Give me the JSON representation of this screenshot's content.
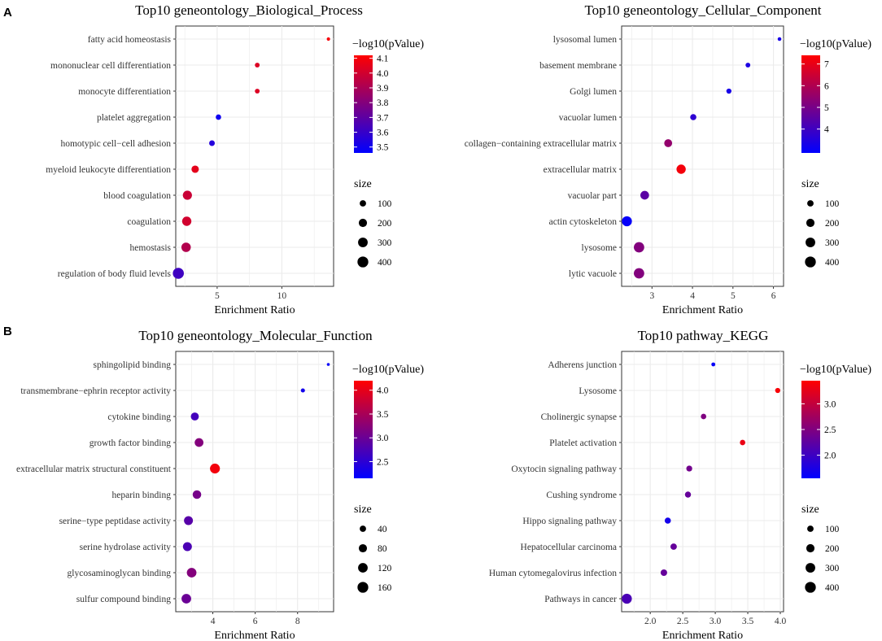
{
  "panel_labels": [
    "A",
    "B"
  ],
  "chart_data": [
    {
      "type": "scatter",
      "title": "Top10 geneontology_Biological_Process",
      "xlabel": "Enrichment Ratio",
      "ylabel": "",
      "xlim": [
        1.8,
        14.0
      ],
      "x_ticks": [
        5,
        10
      ],
      "grid": true,
      "categories": [
        "fatty acid homeostasis",
        "mononuclear cell differentiation",
        "monocyte differentiation",
        "platelet aggregation",
        "homotypic cell−cell adhesion",
        "myeloid leukocyte differentiation",
        "blood coagulation",
        "coagulation",
        "hemostasis",
        "regulation of body fluid levels"
      ],
      "x": [
        13.6,
        8.1,
        8.1,
        5.1,
        4.6,
        3.3,
        2.7,
        2.65,
        2.6,
        2.0
      ],
      "neglog10p": [
        4.1,
        4.03,
        4.03,
        3.5,
        3.55,
        4.05,
        3.98,
        4.0,
        3.92,
        3.62
      ],
      "size": [
        10,
        40,
        40,
        60,
        70,
        150,
        260,
        270,
        280,
        420
      ],
      "color_legend": {
        "title": "−log10(pValue)",
        "range": [
          3.46,
          4.12
        ],
        "ticks": [
          "3.5",
          "3.6",
          "3.7",
          "3.8",
          "3.9",
          "4.0",
          "4.1"
        ],
        "low_color": "#0000ff",
        "high_color": "#ff0000"
      },
      "size_legend": {
        "title": "size",
        "values": [
          100,
          200,
          300,
          400
        ],
        "labels": [
          "100",
          "200",
          "300",
          "400"
        ],
        "max": 420
      }
    },
    {
      "type": "scatter",
      "title": "Top10 geneontology_Cellular_Component",
      "xlabel": "Enrichment Ratio",
      "ylabel": "",
      "xlim": [
        2.25,
        6.25
      ],
      "x_ticks": [
        3,
        4,
        5,
        6
      ],
      "grid": true,
      "categories": [
        "lysosomal lumen",
        "basement membrane",
        "Golgi lumen",
        "vacuolar lumen",
        "collagen−containing extracellular matrix",
        "extracellular matrix",
        "vacuolar part",
        "actin cytoskeleton",
        "lysosome",
        "lytic vacuole"
      ],
      "x": [
        6.15,
        5.37,
        4.9,
        4.02,
        3.4,
        3.72,
        2.82,
        2.38,
        2.68,
        2.68
      ],
      "neglog10p": [
        3.3,
        3.4,
        3.3,
        3.7,
        5.5,
        7.2,
        4.5,
        3.0,
        5.2,
        5.2
      ],
      "size": [
        15,
        40,
        50,
        90,
        180,
        270,
        230,
        330,
        360,
        360
      ],
      "color_legend": {
        "title": "−log10(pValue)",
        "range": [
          2.9,
          7.4
        ],
        "ticks": [
          "4",
          "5",
          "6",
          "7"
        ],
        "low_color": "#0000ff",
        "high_color": "#ff0000"
      },
      "size_legend": {
        "title": "size",
        "values": [
          100,
          200,
          300,
          400
        ],
        "labels": [
          "100",
          "200",
          "300",
          "400"
        ],
        "max": 420
      }
    },
    {
      "type": "scatter",
      "title": "Top10 geneontology_Molecular_Function",
      "xlabel": "Enrichment Ratio",
      "ylabel": "",
      "xlim": [
        2.25,
        9.7
      ],
      "x_ticks": [
        4,
        6,
        8
      ],
      "grid": true,
      "categories": [
        "sphingolipid binding",
        "transmembrane−ephrin receptor activity",
        "cytokine binding",
        "growth factor binding",
        "extracellular matrix structural constituent",
        "heparin binding",
        "serine−type peptidase activity",
        "serine hydrolase activity",
        "glycosaminoglycan binding",
        "sulfur compound binding"
      ],
      "x": [
        9.45,
        8.25,
        3.15,
        3.35,
        4.1,
        3.25,
        2.85,
        2.8,
        3.0,
        2.75
      ],
      "neglog10p": [
        2.2,
        2.3,
        2.7,
        3.2,
        4.1,
        3.1,
        2.85,
        2.75,
        3.2,
        3.0
      ],
      "size": [
        2,
        10,
        75,
        95,
        130,
        90,
        100,
        100,
        120,
        120
      ],
      "color_legend": {
        "title": "−log10(pValue)",
        "range": [
          2.15,
          4.2
        ],
        "ticks": [
          "2.5",
          "3.0",
          "3.5",
          "4.0"
        ],
        "low_color": "#0000ff",
        "high_color": "#ff0000"
      },
      "size_legend": {
        "title": "size",
        "values": [
          40,
          80,
          120,
          160
        ],
        "labels": [
          "40",
          "80",
          "120",
          "160"
        ],
        "max": 170
      }
    },
    {
      "type": "scatter",
      "title": "Top10 pathway_KEGG",
      "xlabel": "Enrichment Ratio",
      "ylabel": "",
      "xlim": [
        1.56,
        4.05
      ],
      "x_ticks": [
        2.0,
        2.5,
        3.0,
        3.5,
        4.0
      ],
      "x_tick_labels": [
        "2.0",
        "2.5",
        "3.0",
        "3.5",
        "4.0"
      ],
      "grid": true,
      "categories": [
        "Adherens junction",
        "Lysosome",
        "Cholinergic synapse",
        "Platelet activation",
        "Oxytocin signaling pathway",
        "Cushing syndrome",
        "Hippo signaling pathway",
        "Hepatocellular carcinoma",
        "Human cytomegalovirus infection",
        "Pathways in cancer"
      ],
      "x": [
        2.97,
        3.96,
        2.82,
        3.42,
        2.6,
        2.58,
        2.27,
        2.36,
        2.21,
        1.64
      ],
      "neglog10p": [
        1.6,
        3.4,
        2.5,
        3.3,
        2.4,
        2.3,
        1.7,
        2.3,
        2.3,
        2.1
      ],
      "size": [
        20,
        50,
        60,
        60,
        80,
        85,
        90,
        100,
        105,
        330
      ],
      "color_legend": {
        "title": "−log10(pValue)",
        "range": [
          1.55,
          3.45
        ],
        "ticks": [
          "2.0",
          "2.5",
          "3.0"
        ],
        "low_color": "#0000ff",
        "high_color": "#ff0000"
      },
      "size_legend": {
        "title": "size",
        "values": [
          100,
          200,
          300,
          400
        ],
        "labels": [
          "100",
          "200",
          "300",
          "400"
        ],
        "max": 420
      }
    }
  ]
}
